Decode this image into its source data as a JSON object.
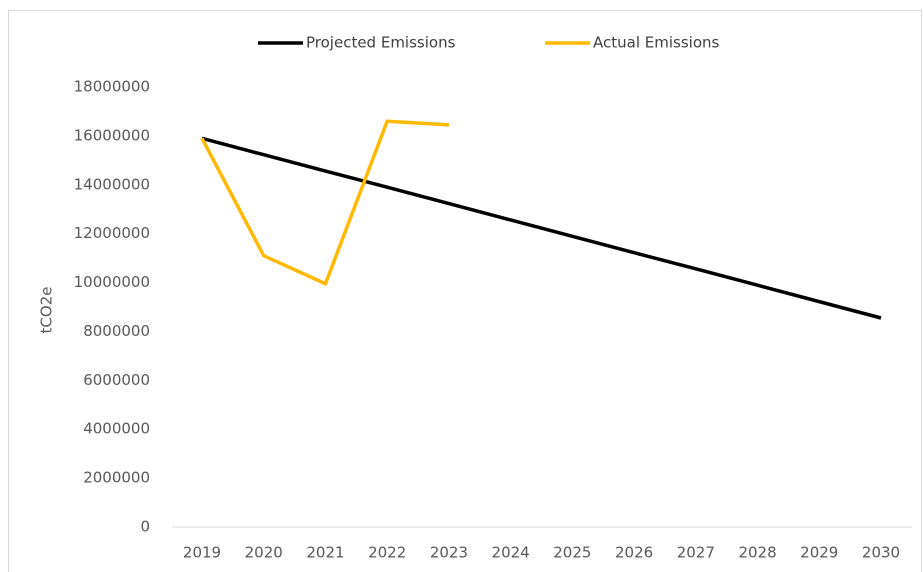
{
  "chart_data": {
    "type": "line",
    "categories": [
      "2019",
      "2020",
      "2021",
      "2022",
      "2023",
      "2024",
      "2025",
      "2026",
      "2027",
      "2028",
      "2029",
      "2030"
    ],
    "series": [
      {
        "name": "Projected Emissions",
        "color": "#000000",
        "values": [
          15900000,
          15230000,
          14560000,
          13900000,
          13230000,
          12560000,
          11890000,
          11220000,
          10560000,
          9890000,
          9220000,
          8550000
        ]
      },
      {
        "name": "Actual Emissions",
        "color": "#FFB900",
        "values": [
          15900000,
          11100000,
          9950000,
          16600000,
          16450000,
          null,
          null,
          null,
          null,
          null,
          null,
          null
        ]
      }
    ],
    "ylabel": "tCO2e",
    "ylim": [
      0,
      18000000
    ],
    "yticks": [
      0,
      2000000,
      4000000,
      6000000,
      8000000,
      10000000,
      12000000,
      14000000,
      16000000,
      18000000
    ],
    "grid": false,
    "legend": "top"
  }
}
